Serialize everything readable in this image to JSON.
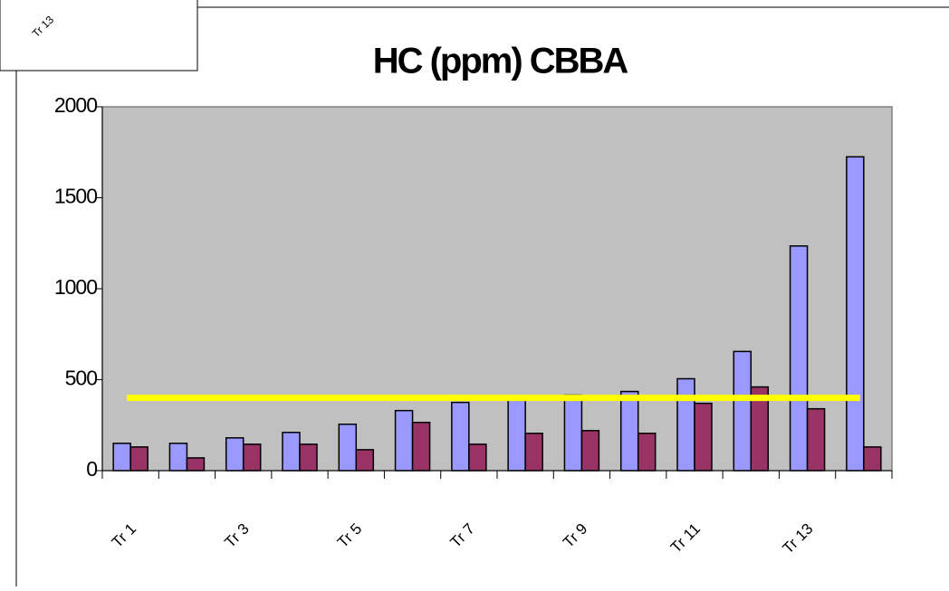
{
  "fragment": {
    "label": "Tr 13"
  },
  "chart_data": {
    "type": "bar",
    "title": "HC (ppm) CBBA",
    "categories": [
      "Tr 1",
      null,
      "Tr 3",
      null,
      "Tr 5",
      null,
      "Tr 7",
      null,
      "Tr 9",
      null,
      "Tr 11",
      null,
      "Tr 13",
      null
    ],
    "series": [
      {
        "color": "#9999ff",
        "values": [
          150,
          150,
          180,
          210,
          255,
          330,
          375,
          410,
          415,
          435,
          505,
          655,
          1235,
          1725
        ]
      },
      {
        "color": "#993366",
        "values": [
          130,
          70,
          145,
          145,
          115,
          265,
          145,
          205,
          220,
          205,
          370,
          460,
          340,
          130
        ]
      },
      {
        "type": "line",
        "color": "#ffff00",
        "values": [
          400,
          400,
          400,
          400,
          400,
          400,
          400,
          400,
          400,
          400,
          400,
          400,
          400,
          400
        ]
      }
    ],
    "ylim": [
      0,
      2000
    ],
    "yticks": [
      0,
      500,
      1000,
      1500,
      2000
    ],
    "grid": false
  }
}
